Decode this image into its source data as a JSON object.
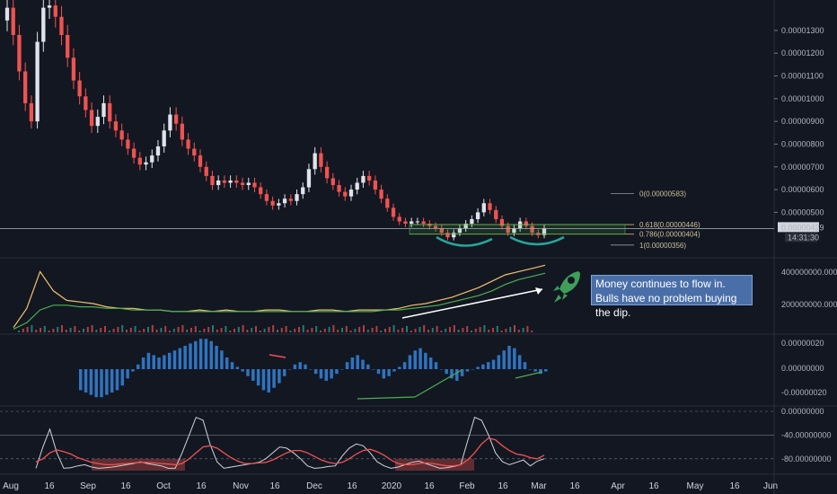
{
  "chart_data": {
    "type": "candlestick",
    "timeframe": "daily",
    "price_axis": {
      "ticks": [
        "0.00001300",
        "0.00001200",
        "0.00001100",
        "0.00001000",
        "0.00000900",
        "0.00000800",
        "0.00000700",
        "0.00000600",
        "0.00000500"
      ],
      "current_price": "0.00000429",
      "countdown": "14:31:30"
    },
    "time_axis": {
      "ticks": [
        "Aug",
        "16",
        "Sep",
        "16",
        "Oct",
        "16",
        "Nov",
        "16",
        "Dec",
        "16",
        "2020",
        "16",
        "Feb",
        "16",
        "Mar",
        "16",
        "Apr",
        "16",
        "May",
        "16",
        "Jun"
      ]
    },
    "fibonacci": {
      "levels": [
        {
          "label": "0(0.00000583)",
          "price": 5.83e-06
        },
        {
          "label": "0.618(0.00000446)",
          "price": 4.46e-06
        },
        {
          "label": "0.786(0.00000404)",
          "price": 4.04e-06
        },
        {
          "label": "1(0.00000356)",
          "price": 3.56e-06
        }
      ]
    },
    "price_series_close": [
      1.4e-05,
      1.28e-05,
      1.12e-05,
      9.8e-06,
      9e-06,
      1.25e-05,
      1.4e-05,
      1.41e-05,
      1.36e-05,
      1.28e-05,
      1.18e-05,
      1.08e-05,
      1.01e-05,
      9.5e-06,
      8.8e-06,
      9.2e-06,
      9.8e-06,
      9e-06,
      8.6e-06,
      8.2e-06,
      7.8e-06,
      7.4e-06,
      7.1e-06,
      7.2e-06,
      7.5e-06,
      7.9e-06,
      8.6e-06,
      9.3e-06,
      8.9e-06,
      8.2e-06,
      7.8e-06,
      7.5e-06,
      7e-06,
      6.6e-06,
      6.2e-06,
      6.4e-06,
      6.3e-06,
      6.4e-06,
      6.3e-06,
      6.2e-06,
      6.3e-06,
      6.1e-06,
      5.8e-06,
      5.5e-06,
      5.3e-06,
      5.4e-06,
      5.6e-06,
      5.5e-06,
      5.8e-06,
      6.1e-06,
      6.9e-06,
      7.6e-06,
      7e-06,
      6.5e-06,
      6.2e-06,
      5.9e-06,
      5.7e-06,
      6e-06,
      6.3e-06,
      6.6e-06,
      6.4e-06,
      6e-06,
      5.6e-06,
      5.2e-06,
      4.8e-06,
      4.6e-06,
      4.5e-06,
      4.6e-06,
      4.6e-06,
      4.5e-06,
      4.4e-06,
      4.3e-06,
      4.1e-06,
      3.9e-06,
      4.1e-06,
      4.3e-06,
      4.5e-06,
      4.7e-06,
      5e-06,
      5.4e-06,
      5.1e-06,
      4.7e-06,
      4.4e-06,
      4.1e-06,
      4.3e-06,
      4.6e-06,
      4.4e-06,
      4.1e-06,
      4e-06,
      4.3e-06
    ],
    "volume_panel": {
      "right_ticks": [
        "400000000.00000000",
        "200000000.00000000"
      ],
      "series": [
        {
          "color": "#f0c36b",
          "values": [
            3,
            15,
            38,
            26,
            20,
            19,
            18,
            16,
            15,
            15,
            14,
            14,
            13,
            13,
            14,
            13,
            14,
            13,
            13,
            14,
            14,
            13,
            13,
            14,
            14,
            13,
            14,
            14,
            14,
            15,
            17,
            18,
            20,
            22,
            25,
            28,
            32,
            36,
            38,
            40,
            42
          ]
        },
        {
          "color": "#4caf50",
          "values": [
            2,
            6,
            14,
            17,
            17,
            16,
            16,
            15,
            15,
            14,
            14,
            14,
            13,
            13,
            13,
            13,
            13,
            13,
            13,
            13,
            13,
            13,
            13,
            13,
            13,
            13,
            13,
            13,
            14,
            14,
            15,
            16,
            17,
            19,
            21,
            23,
            26,
            30,
            33,
            35,
            37
          ]
        }
      ]
    },
    "macd_panel": {
      "right_ticks": [
        "0.00000020",
        "0.00000000",
        "-0.00000020"
      ],
      "histogram": [
        -9,
        -10,
        -11,
        -12,
        -12,
        -11,
        -10,
        -9,
        -7,
        -4,
        -1,
        2,
        5,
        7,
        6,
        5,
        6,
        7,
        8,
        9,
        10,
        11,
        12,
        13,
        13,
        12,
        10,
        8,
        5,
        3,
        1,
        -1,
        -3,
        -5,
        -7,
        -9,
        -10,
        -8,
        -6,
        -3,
        0,
        2,
        3,
        2,
        0,
        -2,
        -4,
        -5,
        -4,
        -2,
        0,
        3,
        5,
        6,
        4,
        2,
        0,
        -2,
        -4,
        -3,
        -1,
        1,
        3,
        6,
        8,
        9,
        7,
        5,
        3,
        0,
        -2,
        -4,
        -5,
        -3,
        -1,
        0,
        1,
        2,
        3,
        4,
        6,
        8,
        10,
        9,
        6,
        3,
        0,
        -1,
        -2,
        -1
      ]
    },
    "rsi_panel": {
      "right_ticks": [
        "0.00000000",
        "-40.00000000",
        "-80.00000000"
      ],
      "line": [
        -96,
        -60,
        -30,
        -70,
        -96,
        -95,
        -92,
        -90,
        -94,
        -96,
        -95,
        -94,
        -92,
        -90,
        -88,
        -85,
        -88,
        -90,
        -92,
        -96,
        -96,
        -70,
        -40,
        -10,
        -15,
        -55,
        -85,
        -96,
        -94,
        -92,
        -90,
        -88,
        -86,
        -80,
        -70,
        -60,
        -62,
        -70,
        -80,
        -92,
        -96,
        -95,
        -93,
        -92,
        -75,
        -62,
        -55,
        -58,
        -70,
        -85,
        -92,
        -96,
        -94,
        -90,
        -86,
        -84,
        -88,
        -92,
        -96,
        -95,
        -93,
        -90,
        -50,
        -10,
        -15,
        -40,
        -70,
        -85,
        -90,
        -86,
        -82,
        -92,
        -84,
        -80
      ],
      "signal": [
        -85,
        -80,
        -70,
        -65,
        -68,
        -72,
        -78,
        -82,
        -86,
        -88,
        -90,
        -90,
        -89,
        -88,
        -87,
        -86,
        -86,
        -87,
        -88,
        -89,
        -90,
        -88,
        -80,
        -70,
        -60,
        -58,
        -62,
        -70,
        -78,
        -84,
        -88,
        -88,
        -87,
        -86,
        -82,
        -76,
        -70,
        -66,
        -66,
        -70,
        -76,
        -82,
        -86,
        -88,
        -86,
        -80,
        -72,
        -66,
        -64,
        -68,
        -74,
        -82,
        -88,
        -90,
        -90,
        -88,
        -87,
        -88,
        -90,
        -92,
        -92,
        -90,
        -82,
        -70,
        -55,
        -45,
        -48,
        -58,
        -66,
        -72,
        -74,
        -78,
        -80,
        -74
      ]
    }
  },
  "annotation": {
    "line1": "Money continues to flow in.",
    "line2": "Bulls have no problem buying the dip."
  },
  "colors": {
    "background": "#131722",
    "up_candle": "#e0e3eb",
    "down_candle": "#ef5350",
    "green_line": "#4caf50",
    "yellow_line": "#f0c36b",
    "macd_bar": "#2f74c0",
    "rsi_line": "#d1d4dc",
    "rsi_signal": "#ef5350",
    "annotation_bg": "#4a6fa8",
    "cup_arc": "#26a69a"
  }
}
